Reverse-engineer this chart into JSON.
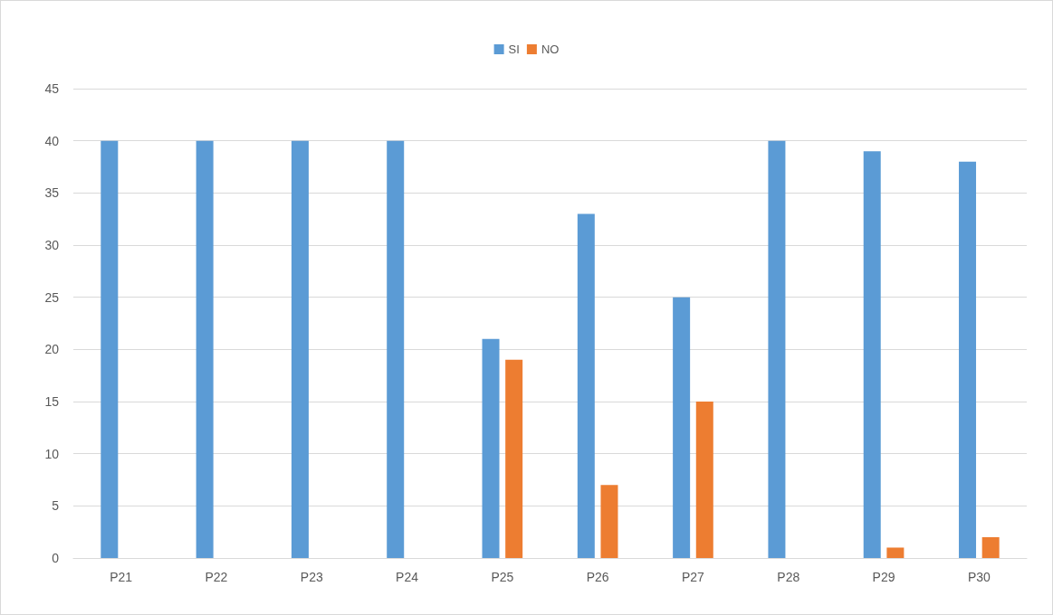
{
  "chart_data": {
    "type": "bar",
    "categories": [
      "P21",
      "P22",
      "P23",
      "P24",
      "P25",
      "P26",
      "P27",
      "P28",
      "P29",
      "P30"
    ],
    "series": [
      {
        "name": "SI",
        "color": "#5b9bd5",
        "values": [
          40,
          40,
          40,
          40,
          21,
          33,
          25,
          40,
          39,
          38
        ]
      },
      {
        "name": "NO",
        "color": "#ed7d31",
        "values": [
          0,
          0,
          0,
          0,
          19,
          7,
          15,
          0,
          1,
          2
        ]
      }
    ],
    "ylim": [
      0,
      45
    ],
    "yticks": [
      0,
      5,
      10,
      15,
      20,
      25,
      30,
      35,
      40,
      45
    ],
    "grid": "y",
    "legend": "top"
  }
}
